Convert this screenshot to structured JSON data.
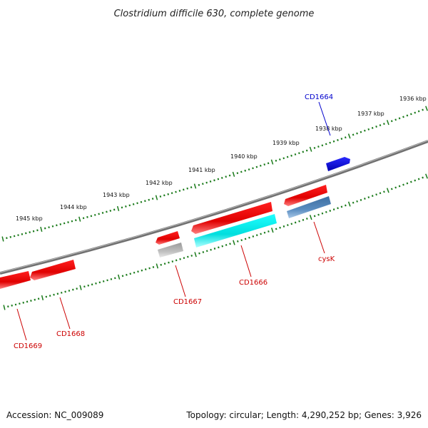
{
  "title": "Clostridium difficile 630, complete genome",
  "footer": {
    "accession": "Accession: NC_009089",
    "info": "Topology: circular; Length: 4,290,252 bp; Genes: 3,926"
  },
  "colors": {
    "background": "#ffffff",
    "backbone": "#808080",
    "tick": "#1a7a1a",
    "forward_gene": "#0000ee",
    "reverse_gene": "#ee0000",
    "cyan_feature": "#00e0e0",
    "steelblue_feature": "#4a7fb5",
    "gray_feature": "#b0b0b0"
  },
  "tick_labels": [
    "1945 kbp",
    "1944 kbp",
    "1943 kbp",
    "1942 kbp",
    "1941 kbp",
    "1940 kbp",
    "1939 kbp",
    "1938 kbp",
    "1937 kbp",
    "1936 kbp"
  ],
  "genes": [
    {
      "name": "CD1664",
      "strand": "+",
      "color": "#0000cc"
    },
    {
      "name": "cysK",
      "strand": "-",
      "color": "#cc0000"
    },
    {
      "name": "CD1666",
      "strand": "-",
      "color": "#cc0000"
    },
    {
      "name": "CD1667",
      "strand": "-",
      "color": "#cc0000"
    },
    {
      "name": "CD1668",
      "strand": "-",
      "color": "#cc0000"
    },
    {
      "name": "CD1669",
      "strand": "-",
      "color": "#cc0000"
    }
  ]
}
